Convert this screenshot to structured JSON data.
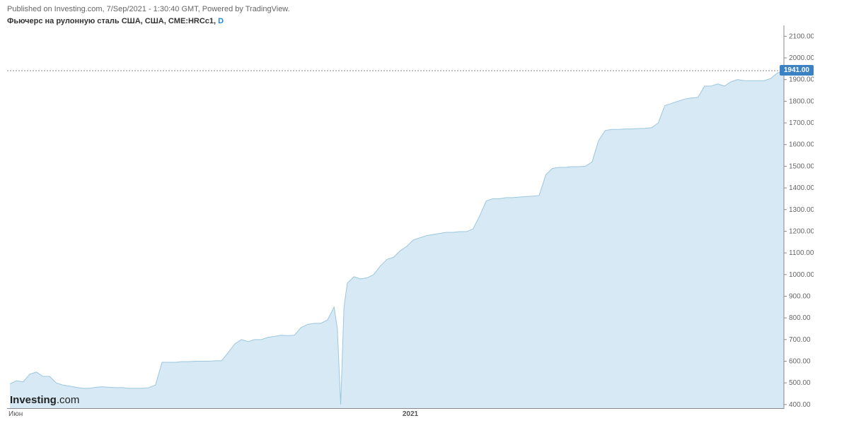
{
  "header": {
    "published_line": "Published on Investing.com, 7/Sep/2021 - 1:30:40 GMT, Powered by TradingView.",
    "title_main": "Фьючерс на рулонную сталь США, США, CME:HRCc1, ",
    "title_interval": "D"
  },
  "chart": {
    "type": "area",
    "background_color": "#ffffff",
    "area_fill": "#d6e9f4",
    "line_color": "#9cc7de",
    "line_width": 1,
    "ylim": [
      380,
      2150
    ],
    "ytick_step": 100,
    "yticks": [
      400,
      500,
      600,
      700,
      800,
      900,
      1000,
      1100,
      1200,
      1300,
      1400,
      1500,
      1600,
      1700,
      1800,
      1900,
      2000,
      2100
    ],
    "ytick_labels": [
      "400.00",
      "500.00",
      "600.00",
      "700.00",
      "800.00",
      "900.00",
      "1000.00",
      "1100.00",
      "1200.00",
      "1300.00",
      "1400.00",
      "1500.00",
      "1600.00",
      "1700.00",
      "1800.00",
      "1900.00",
      "2000.00",
      "2100.00"
    ],
    "tick_color": "#888888",
    "label_color": "#666666",
    "label_fontsize": 10,
    "current_value": 1941.0,
    "current_label": "1941.00",
    "badge_bg": "#3b82c4",
    "badge_fg": "#ffffff",
    "xlabels": {
      "left": "Июн",
      "mid": "2021"
    },
    "series": [
      [
        0,
        495
      ],
      [
        1,
        510
      ],
      [
        2,
        505
      ],
      [
        3,
        540
      ],
      [
        4,
        550
      ],
      [
        5,
        530
      ],
      [
        6,
        530
      ],
      [
        7,
        500
      ],
      [
        8,
        490
      ],
      [
        9,
        485
      ],
      [
        10,
        480
      ],
      [
        11,
        475
      ],
      [
        12,
        475
      ],
      [
        13,
        480
      ],
      [
        14,
        482
      ],
      [
        15,
        480
      ],
      [
        16,
        478
      ],
      [
        17,
        478
      ],
      [
        18,
        475
      ],
      [
        19,
        475
      ],
      [
        20,
        475
      ],
      [
        21,
        478
      ],
      [
        22,
        490
      ],
      [
        23,
        595
      ],
      [
        24,
        595
      ],
      [
        25,
        595
      ],
      [
        26,
        598
      ],
      [
        27,
        598
      ],
      [
        28,
        600
      ],
      [
        29,
        600
      ],
      [
        30,
        600
      ],
      [
        31,
        602
      ],
      [
        32,
        602
      ],
      [
        33,
        640
      ],
      [
        34,
        680
      ],
      [
        35,
        700
      ],
      [
        36,
        690
      ],
      [
        37,
        700
      ],
      [
        38,
        700
      ],
      [
        39,
        710
      ],
      [
        40,
        715
      ],
      [
        41,
        720
      ],
      [
        42,
        718
      ],
      [
        43,
        720
      ],
      [
        44,
        755
      ],
      [
        45,
        770
      ],
      [
        46,
        775
      ],
      [
        47,
        775
      ],
      [
        48,
        790
      ],
      [
        49,
        850
      ],
      [
        49.5,
        750
      ],
      [
        50,
        400
      ],
      [
        50.5,
        850
      ],
      [
        51,
        960
      ],
      [
        52,
        990
      ],
      [
        53,
        980
      ],
      [
        54,
        985
      ],
      [
        55,
        1000
      ],
      [
        56,
        1040
      ],
      [
        57,
        1070
      ],
      [
        58,
        1080
      ],
      [
        59,
        1110
      ],
      [
        60,
        1130
      ],
      [
        61,
        1160
      ],
      [
        62,
        1170
      ],
      [
        63,
        1180
      ],
      [
        64,
        1185
      ],
      [
        65,
        1190
      ],
      [
        66,
        1195
      ],
      [
        67,
        1195
      ],
      [
        68,
        1198
      ],
      [
        69,
        1198
      ],
      [
        70,
        1210
      ],
      [
        71,
        1270
      ],
      [
        72,
        1340
      ],
      [
        73,
        1350
      ],
      [
        74,
        1350
      ],
      [
        75,
        1355
      ],
      [
        76,
        1355
      ],
      [
        77,
        1358
      ],
      [
        78,
        1360
      ],
      [
        79,
        1362
      ],
      [
        80,
        1365
      ],
      [
        81,
        1460
      ],
      [
        82,
        1490
      ],
      [
        83,
        1495
      ],
      [
        84,
        1495
      ],
      [
        85,
        1498
      ],
      [
        86,
        1498
      ],
      [
        87,
        1500
      ],
      [
        88,
        1520
      ],
      [
        89,
        1620
      ],
      [
        90,
        1665
      ],
      [
        91,
        1670
      ],
      [
        92,
        1670
      ],
      [
        93,
        1672
      ],
      [
        94,
        1672
      ],
      [
        95,
        1674
      ],
      [
        96,
        1675
      ],
      [
        97,
        1678
      ],
      [
        98,
        1700
      ],
      [
        99,
        1780
      ],
      [
        100,
        1790
      ],
      [
        101,
        1800
      ],
      [
        102,
        1810
      ],
      [
        103,
        1815
      ],
      [
        104,
        1818
      ],
      [
        105,
        1870
      ],
      [
        106,
        1870
      ],
      [
        107,
        1880
      ],
      [
        108,
        1870
      ],
      [
        109,
        1890
      ],
      [
        110,
        1900
      ],
      [
        111,
        1895
      ],
      [
        112,
        1895
      ],
      [
        113,
        1895
      ],
      [
        114,
        1895
      ],
      [
        115,
        1905
      ],
      [
        116,
        1930
      ],
      [
        117,
        1941
      ]
    ]
  },
  "logo": {
    "prefix": "Investing",
    "suffix": ".com"
  }
}
